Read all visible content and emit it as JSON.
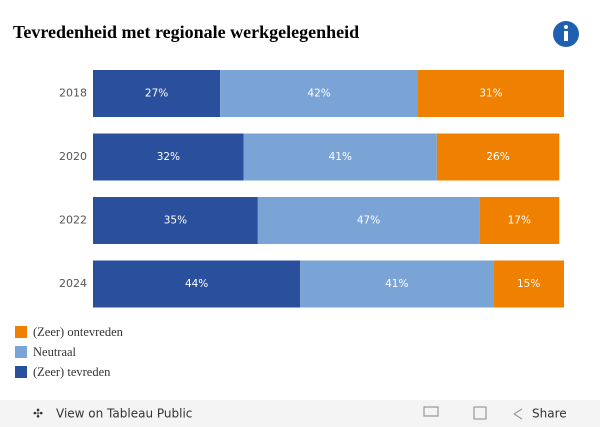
{
  "chart_data": {
    "type": "stacked-bar",
    "title": "Tevredenheid met regionale werkgelegenheid",
    "categories": [
      "2018",
      "2020",
      "2022",
      "2024"
    ],
    "xlim": [
      0,
      100
    ],
    "series": [
      {
        "name": "(Zeer) tevreden",
        "color": "#2a4f9c",
        "values": [
          27,
          32,
          35,
          44
        ],
        "value_labels": [
          "27%",
          "32%",
          "35%",
          "44%"
        ]
      },
      {
        "name": "Neutraal",
        "color": "#7aa3d6",
        "values": [
          42,
          41,
          47,
          41
        ],
        "value_labels": [
          "42%",
          "41%",
          "47%",
          "41%"
        ]
      },
      {
        "name": "(Zeer) ontevreden",
        "color": "#f08000",
        "values": [
          31,
          26,
          17,
          15
        ],
        "value_labels": [
          "31%",
          "26%",
          "17%",
          "15%"
        ]
      }
    ]
  },
  "toolbar": {
    "view": "View on Tableau Public",
    "share": "Share"
  }
}
